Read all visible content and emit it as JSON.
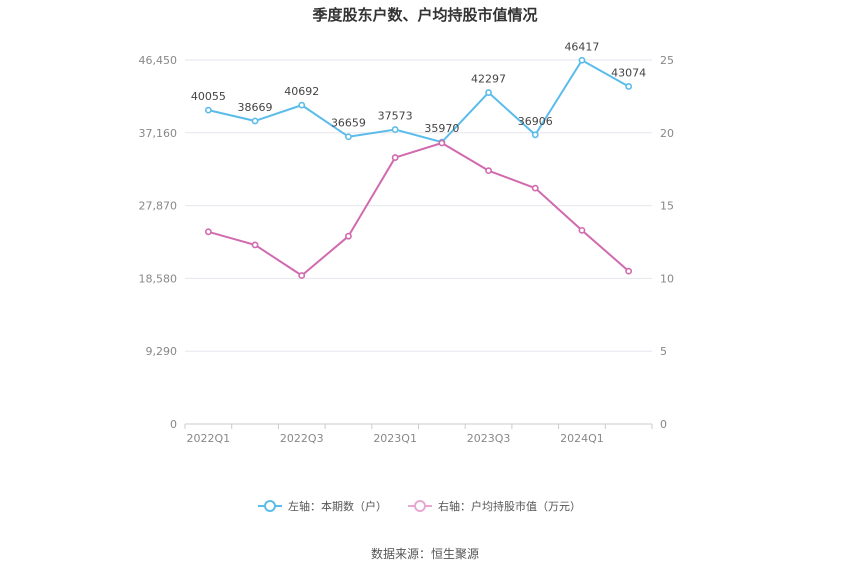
{
  "chart_data": {
    "type": "line",
    "title": "季度股东户数、户均持股市值情况",
    "categories": [
      "2022Q1",
      "2022Q2",
      "2022Q3",
      "2022Q4",
      "2023Q1",
      "2023Q2",
      "2023Q3",
      "2023Q4",
      "2024Q1",
      "2024Q2"
    ],
    "x_tick_labels": [
      "2022Q1",
      "2022Q3",
      "2023Q1",
      "2023Q3",
      "2024Q1"
    ],
    "left_axis": {
      "min": 0,
      "max": 46450,
      "ticks": [
        "0",
        "9,290",
        "18,580",
        "27,870",
        "37,160",
        "46,450"
      ],
      "tick_values": [
        0,
        9290,
        18580,
        27870,
        37160,
        46450
      ]
    },
    "right_axis": {
      "min": 0,
      "max": 25,
      "ticks": [
        "0",
        "5",
        "10",
        "15",
        "20",
        "25"
      ],
      "tick_values": [
        0,
        5,
        10,
        15,
        20,
        25
      ]
    },
    "series": [
      {
        "name": "左轴：本期数（户）",
        "axis": "left",
        "color": "#5bbcea",
        "values": [
          40055,
          38669,
          40692,
          36659,
          37573,
          35970,
          42297,
          36906,
          46417,
          43074
        ],
        "labels": [
          "40055",
          "38669",
          "40692",
          "36659",
          "37573",
          "35970",
          "42297",
          "36906",
          "46417",
          "43074"
        ]
      },
      {
        "name": "右轴：户均持股市值（万元）",
        "axis": "right",
        "color": "#d16aae",
        "values": [
          13.2,
          12.3,
          10.2,
          12.9,
          18.3,
          19.3,
          17.4,
          16.2,
          13.3,
          10.5
        ]
      }
    ],
    "grid": true,
    "legend_position": "bottom-center"
  },
  "source": "数据来源：恒生聚源"
}
